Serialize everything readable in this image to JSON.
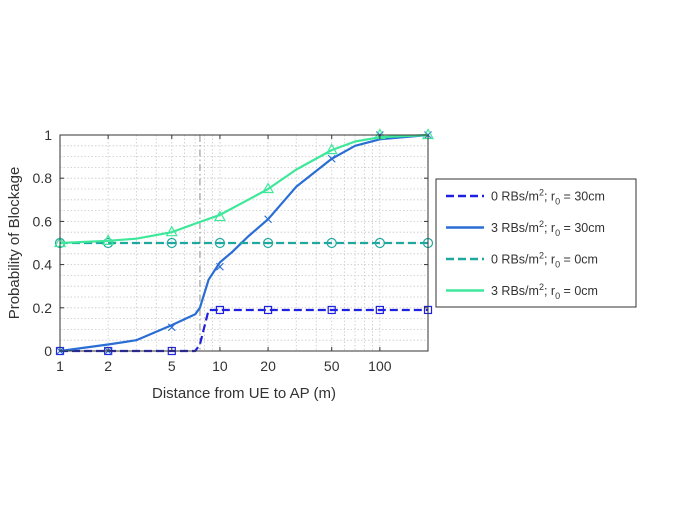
{
  "chart_data": {
    "type": "line",
    "title": "",
    "xlabel": "Distance from UE to AP (m)",
    "ylabel": "Probability of Blockage",
    "xscale": "log",
    "xlim": [
      1,
      200
    ],
    "ylim": [
      0,
      1
    ],
    "x_ticks": [
      1,
      2,
      5,
      10,
      20,
      50,
      100
    ],
    "x_tick_labels": [
      "1",
      "2",
      "5",
      "10",
      "20",
      "50",
      "100"
    ],
    "y_ticks": [
      0,
      0.2,
      0.4,
      0.6,
      0.8,
      1
    ],
    "y_tick_labels": [
      "0",
      "0.2",
      "0.4",
      "0.6",
      "0.8",
      "1"
    ],
    "grid": "major and minor, dotted",
    "reference_line_x": 7.5,
    "legend_position": "outside-right",
    "series": [
      {
        "name": "0 RBs/m²; r₀ = 30cm",
        "legend_parts": [
          "0 RBs/m",
          "2",
          "; r",
          "0",
          " = 30cm"
        ],
        "color": "#2020e0",
        "dash": "dashed",
        "marker": "square",
        "line": {
          "x": [
            1,
            2,
            3,
            5,
            7,
            7.5,
            8.5,
            10,
            20,
            50,
            100,
            200
          ],
          "y": [
            0,
            0,
            0,
            0,
            0,
            0.03,
            0.19,
            0.19,
            0.19,
            0.19,
            0.19,
            0.19
          ]
        },
        "markers": {
          "x": [
            1,
            2,
            5,
            10,
            20,
            50,
            100,
            200
          ],
          "y": [
            0,
            0,
            0,
            0.19,
            0.19,
            0.19,
            0.19,
            0.19
          ]
        }
      },
      {
        "name": "3 RBs/m²; r₀ = 30cm",
        "legend_parts": [
          "3 RBs/m",
          "2",
          "; r",
          "0",
          " = 30cm"
        ],
        "color": "#2a6dd4",
        "dash": "solid",
        "marker": "x",
        "line": {
          "x": [
            1,
            2,
            3,
            5,
            7,
            7.5,
            8.5,
            10,
            12,
            15,
            20,
            30,
            50,
            70,
            100,
            200
          ],
          "y": [
            0,
            0.03,
            0.05,
            0.12,
            0.17,
            0.2,
            0.33,
            0.41,
            0.46,
            0.53,
            0.61,
            0.76,
            0.89,
            0.95,
            0.98,
            1
          ]
        },
        "markers": {
          "x": [
            1,
            2,
            5,
            10,
            20,
            50,
            100,
            200
          ],
          "y": [
            0,
            0,
            0.11,
            0.39,
            0.61,
            0.89,
            1,
            1
          ]
        }
      },
      {
        "name": "0 RBs/m²; r₀ = 0cm",
        "legend_parts": [
          "0 RBs/m",
          "2",
          "; r",
          "0",
          " = 0cm"
        ],
        "color": "#20a8a0",
        "dash": "dashed",
        "marker": "circle",
        "line": {
          "x": [
            1,
            200
          ],
          "y": [
            0.5,
            0.5
          ]
        },
        "markers": {
          "x": [
            1,
            2,
            5,
            10,
            20,
            50,
            100,
            200
          ],
          "y": [
            0.5,
            0.5,
            0.5,
            0.5,
            0.5,
            0.5,
            0.5,
            0.5
          ]
        }
      },
      {
        "name": "3 RBs/m²; r₀ = 0cm",
        "legend_parts": [
          "3 RBs/m",
          "2",
          "; r",
          "0",
          " = 0cm"
        ],
        "color": "#3ee89a",
        "dash": "solid",
        "marker": "triangle",
        "line": {
          "x": [
            1,
            2,
            3,
            5,
            7,
            10,
            15,
            20,
            30,
            50,
            70,
            100,
            200
          ],
          "y": [
            0.5,
            0.51,
            0.52,
            0.55,
            0.59,
            0.63,
            0.7,
            0.75,
            0.84,
            0.93,
            0.97,
            0.99,
            1
          ]
        },
        "markers": {
          "x": [
            1,
            2,
            5,
            10,
            20,
            50,
            100,
            200
          ],
          "y": [
            0.5,
            0.51,
            0.55,
            0.62,
            0.75,
            0.93,
            1,
            1
          ]
        }
      }
    ]
  }
}
